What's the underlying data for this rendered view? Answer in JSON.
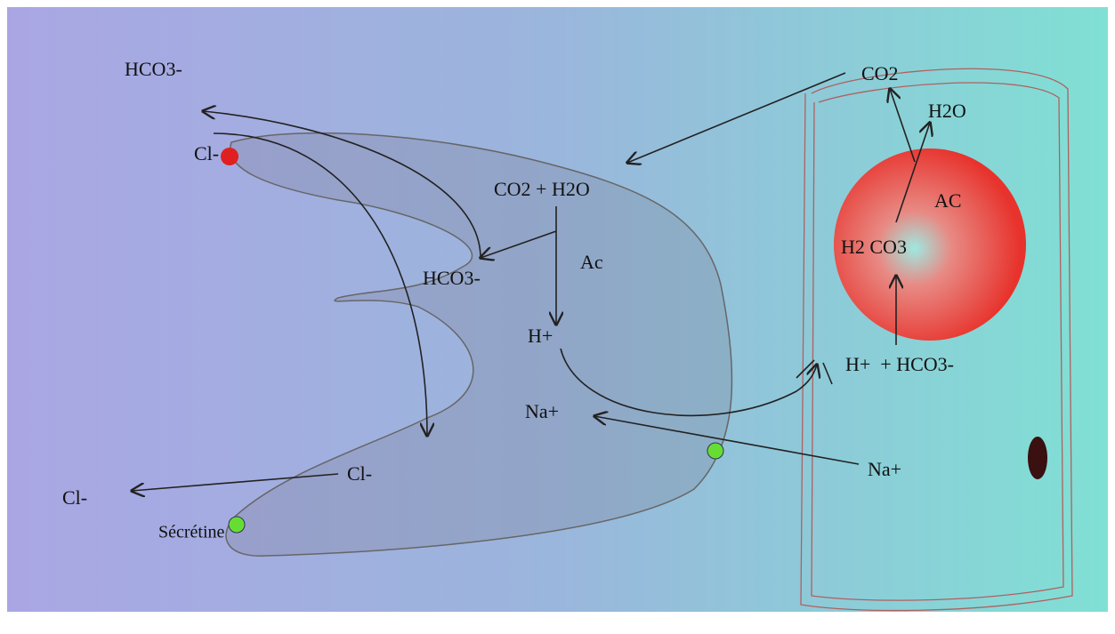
{
  "nodes": [
    {
      "label": "HCO3-"
    },
    {
      "label": "Cl-"
    },
    {
      "label": "CO2 + H2O"
    },
    {
      "label": "HCO3-"
    },
    {
      "label": "Ac"
    },
    {
      "label": "H+"
    },
    {
      "label": "Na+"
    },
    {
      "label": "Cl-"
    },
    {
      "label": "Cl-"
    },
    {
      "label": "Sécrétine"
    },
    {
      "label": "Na+"
    },
    {
      "label": "CO2"
    },
    {
      "label": "H2O"
    },
    {
      "label": "AC"
    },
    {
      "label": "H2 CO3"
    },
    {
      "label": "H+  + HCO3-"
    }
  ]
}
